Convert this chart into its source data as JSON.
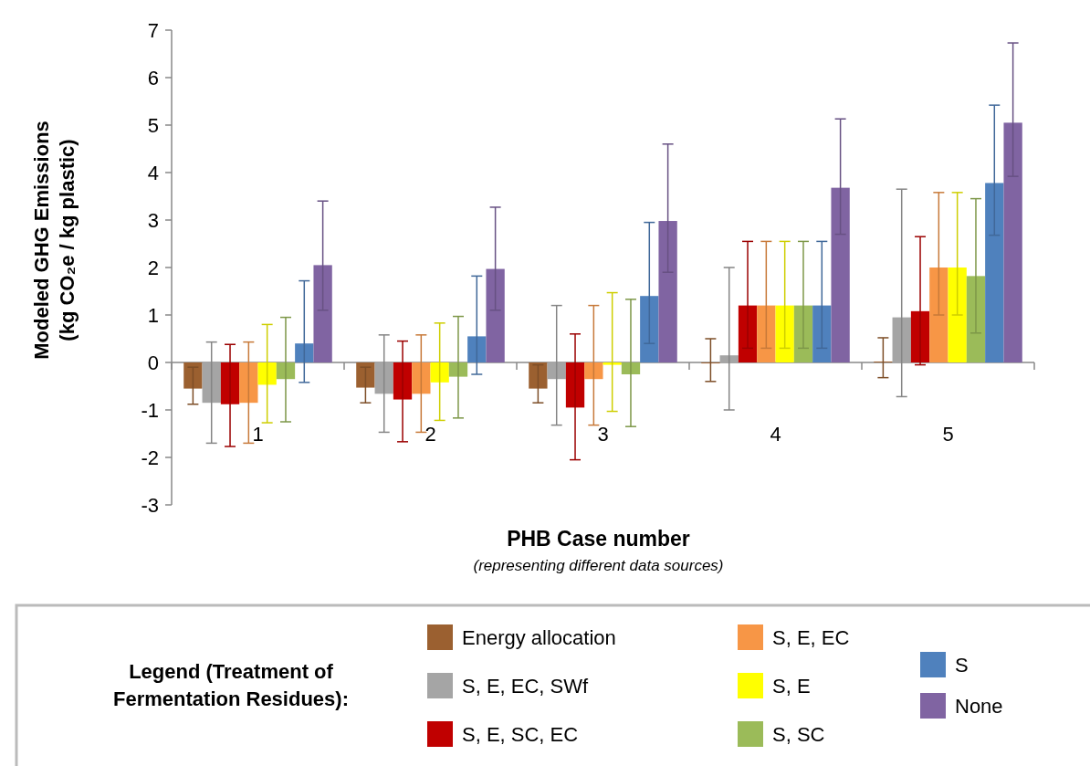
{
  "chart_data": {
    "type": "bar",
    "xlabel": "PHB Case number",
    "ylabel": "Modeled GHG Emissions\n(kg CO₂e / kg plastic)",
    "legend_title": "Legend (Treatment of Fermentation Residues):",
    "annotations": [
      "(representing different data sources)"
    ],
    "categories": [
      "1",
      "2",
      "3",
      "4",
      "5"
    ],
    "ylim": [
      -3,
      7
    ],
    "yticks": [
      -3,
      -2,
      -1,
      0,
      1,
      2,
      3,
      4,
      5,
      6,
      7
    ],
    "legend": "bottom",
    "series": [
      {
        "name": "Energy allocation",
        "color": "#9b6030",
        "values": [
          -0.55,
          -0.53,
          -0.55,
          -0.02,
          0.02
        ],
        "errors": [
          [
            -0.88,
            -0.1
          ],
          [
            -0.85,
            -0.1
          ],
          [
            -0.85,
            -0.05
          ],
          [
            -0.4,
            0.5
          ],
          [
            -0.32,
            0.52
          ]
        ]
      },
      {
        "name": "S, E, EC, SWf",
        "color": "#a5a5a5",
        "values": [
          -0.85,
          -0.66,
          -0.35,
          0.15,
          0.95
        ],
        "errors": [
          [
            -1.7,
            0.43
          ],
          [
            -1.47,
            0.58
          ],
          [
            -1.32,
            1.2
          ],
          [
            -1.0,
            2.0
          ],
          [
            -0.72,
            3.65
          ]
        ]
      },
      {
        "name": "S, E, SC, EC",
        "color": "#c00000",
        "values": [
          -0.88,
          -0.78,
          -0.95,
          1.2,
          1.08
        ],
        "errors": [
          [
            -1.77,
            0.38
          ],
          [
            -1.67,
            0.45
          ],
          [
            -2.05,
            0.6
          ],
          [
            0.3,
            2.55
          ],
          [
            -0.05,
            2.65
          ]
        ]
      },
      {
        "name": "S, E, EC",
        "color": "#f79646",
        "values": [
          -0.85,
          -0.66,
          -0.35,
          1.2,
          2.0
        ],
        "errors": [
          [
            -1.7,
            0.43
          ],
          [
            -1.47,
            0.58
          ],
          [
            -1.32,
            1.2
          ],
          [
            0.3,
            2.55
          ],
          [
            1.0,
            3.58
          ]
        ]
      },
      {
        "name": "S, E",
        "color": "#ffff00",
        "values": [
          -0.47,
          -0.42,
          -0.05,
          1.2,
          2.0
        ],
        "errors": [
          [
            -1.27,
            0.8
          ],
          [
            -1.22,
            0.83
          ],
          [
            -1.03,
            1.47
          ],
          [
            0.3,
            2.55
          ],
          [
            1.0,
            3.58
          ]
        ]
      },
      {
        "name": "S, SC",
        "color": "#9bbb59",
        "values": [
          -0.35,
          -0.3,
          -0.25,
          1.2,
          1.82
        ],
        "errors": [
          [
            -1.25,
            0.95
          ],
          [
            -1.17,
            0.97
          ],
          [
            -1.35,
            1.33
          ],
          [
            0.3,
            2.55
          ],
          [
            0.62,
            3.45
          ]
        ]
      },
      {
        "name": "S",
        "color": "#4f81bd",
        "values": [
          0.4,
          0.55,
          1.4,
          1.2,
          3.78
        ],
        "errors": [
          [
            -0.42,
            1.72
          ],
          [
            -0.25,
            1.82
          ],
          [
            0.4,
            2.95
          ],
          [
            0.3,
            2.55
          ],
          [
            2.68,
            5.42
          ]
        ]
      },
      {
        "name": "None",
        "color": "#8064a2",
        "values": [
          2.05,
          1.97,
          2.98,
          3.68,
          5.05
        ],
        "errors": [
          [
            1.1,
            3.4
          ],
          [
            1.1,
            3.27
          ],
          [
            1.9,
            4.6
          ],
          [
            2.7,
            5.13
          ],
          [
            3.92,
            6.73
          ]
        ]
      }
    ]
  }
}
